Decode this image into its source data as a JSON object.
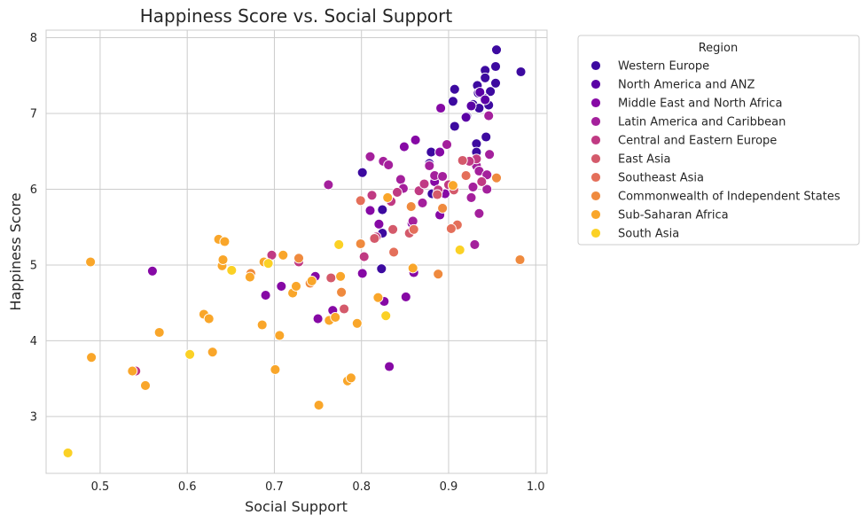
{
  "chart_data": {
    "type": "scatter",
    "title": "Happiness Score vs. Social Support",
    "xlabel": "Social Support",
    "ylabel": "Happiness Score",
    "xlim": [
      0.438,
      1.013
    ],
    "ylim": [
      2.25,
      8.1
    ],
    "xticks": [
      "0.5",
      "0.6",
      "0.7",
      "0.8",
      "0.9",
      "1.0"
    ],
    "yticks": [
      "3",
      "4",
      "5",
      "6",
      "7",
      "8"
    ],
    "grid": true,
    "legend": {
      "title": "Region",
      "position": "outside-right"
    },
    "series": [
      {
        "name": "Western Europe",
        "color": "#3d0aa0",
        "points": [
          [
            0.955,
            7.84
          ],
          [
            0.954,
            7.62
          ],
          [
            0.942,
            7.57
          ],
          [
            0.983,
            7.55
          ],
          [
            0.942,
            7.47
          ],
          [
            0.954,
            7.4
          ],
          [
            0.933,
            7.37
          ],
          [
            0.948,
            7.29
          ],
          [
            0.934,
            7.27
          ],
          [
            0.907,
            7.32
          ],
          [
            0.941,
            7.2
          ],
          [
            0.928,
            7.12
          ],
          [
            0.905,
            7.16
          ],
          [
            0.946,
            7.11
          ],
          [
            0.935,
            7.07
          ],
          [
            0.921,
            6.96
          ],
          [
            0.907,
            6.83
          ],
          [
            0.943,
            6.69
          ],
          [
            0.932,
            6.6
          ],
          [
            0.932,
            6.49
          ],
          [
            0.88,
            6.49
          ],
          [
            0.878,
            6.34
          ],
          [
            0.801,
            6.22
          ],
          [
            0.881,
            5.94
          ],
          [
            0.824,
            5.73
          ],
          [
            0.824,
            5.42
          ],
          [
            0.823,
            4.95
          ]
        ]
      },
      {
        "name": "North America and ANZ",
        "color": "#5a01a5",
        "points": [
          [
            0.936,
            7.28
          ],
          [
            0.942,
            7.18
          ],
          [
            0.926,
            7.1
          ],
          [
            0.92,
            6.95
          ]
        ]
      },
      {
        "name": "Middle East and North Africa",
        "color": "#8609a5",
        "points": [
          [
            0.56,
            4.92
          ],
          [
            0.69,
            4.6
          ],
          [
            0.708,
            4.72
          ],
          [
            0.747,
            4.85
          ],
          [
            0.75,
            4.29
          ],
          [
            0.767,
            4.4
          ],
          [
            0.801,
            4.89
          ],
          [
            0.826,
            4.52
          ],
          [
            0.832,
            3.66
          ],
          [
            0.851,
            4.58
          ],
          [
            0.86,
            4.9
          ],
          [
            0.82,
            5.54
          ],
          [
            0.81,
            5.72
          ],
          [
            0.858,
            5.55
          ],
          [
            0.89,
            5.66
          ],
          [
            0.896,
            5.94
          ],
          [
            0.884,
            6.1
          ],
          [
            0.849,
            6.56
          ],
          [
            0.862,
            6.65
          ],
          [
            0.89,
            6.49
          ],
          [
            0.891,
            7.07
          ]
        ]
      },
      {
        "name": "Latin America and Caribbean",
        "color": "#a4209c",
        "points": [
          [
            0.762,
            6.06
          ],
          [
            0.81,
            6.43
          ],
          [
            0.825,
            6.37
          ],
          [
            0.831,
            6.32
          ],
          [
            0.845,
            6.13
          ],
          [
            0.848,
            6.01
          ],
          [
            0.859,
            5.58
          ],
          [
            0.87,
            5.82
          ],
          [
            0.878,
            6.31
          ],
          [
            0.884,
            6.18
          ],
          [
            0.893,
            6.17
          ],
          [
            0.898,
            6.59
          ],
          [
            0.932,
            6.31
          ],
          [
            0.935,
            6.24
          ],
          [
            0.928,
            6.03
          ],
          [
            0.935,
            5.68
          ],
          [
            0.926,
            5.89
          ],
          [
            0.944,
            6.0
          ],
          [
            0.944,
            6.19
          ],
          [
            0.947,
            6.46
          ],
          [
            0.946,
            6.97
          ],
          [
            0.93,
            5.27
          ]
        ]
      },
      {
        "name": "Central and Eastern Europe",
        "color": "#c03a83",
        "points": [
          [
            0.541,
            3.6
          ],
          [
            0.697,
            5.13
          ],
          [
            0.728,
            5.04
          ],
          [
            0.803,
            5.11
          ],
          [
            0.817,
            5.37
          ],
          [
            0.812,
            5.92
          ],
          [
            0.831,
            5.88
          ],
          [
            0.841,
            5.96
          ],
          [
            0.834,
            5.84
          ],
          [
            0.866,
            5.98
          ],
          [
            0.872,
            6.07
          ],
          [
            0.888,
            5.99
          ],
          [
            0.9,
            6.06
          ],
          [
            0.938,
            6.1
          ],
          [
            0.932,
            6.4
          ],
          [
            0.924,
            6.37
          ]
        ]
      },
      {
        "name": "East Asia",
        "color": "#d45a6b",
        "points": [
          [
            0.765,
            4.83
          ],
          [
            0.78,
            4.42
          ],
          [
            0.815,
            5.35
          ],
          [
            0.836,
            5.47
          ],
          [
            0.855,
            5.42
          ],
          [
            0.887,
            5.93
          ],
          [
            0.906,
            5.99
          ],
          [
            0.916,
            6.38
          ]
        ]
      },
      {
        "name": "Southeast Asia",
        "color": "#e46f5a",
        "points": [
          [
            0.799,
            5.85
          ],
          [
            0.837,
            5.17
          ],
          [
            0.86,
            5.47
          ],
          [
            0.893,
            5.76
          ],
          [
            0.91,
            5.53
          ],
          [
            0.903,
            5.48
          ],
          [
            0.92,
            6.18
          ]
        ]
      },
      {
        "name": "Commonwealth of Independent States",
        "color": "#ef8a3e",
        "points": [
          [
            0.673,
            4.89
          ],
          [
            0.728,
            5.09
          ],
          [
            0.741,
            4.76
          ],
          [
            0.777,
            4.64
          ],
          [
            0.799,
            5.28
          ],
          [
            0.857,
            5.77
          ],
          [
            0.888,
            4.88
          ],
          [
            0.893,
            5.75
          ],
          [
            0.955,
            6.15
          ],
          [
            0.982,
            5.07
          ]
        ]
      },
      {
        "name": "Sub-Saharan Africa",
        "color": "#f9a62a",
        "points": [
          [
            0.489,
            5.04
          ],
          [
            0.49,
            3.78
          ],
          [
            0.537,
            3.6
          ],
          [
            0.552,
            3.41
          ],
          [
            0.568,
            4.11
          ],
          [
            0.619,
            4.35
          ],
          [
            0.625,
            4.29
          ],
          [
            0.629,
            3.85
          ],
          [
            0.636,
            5.34
          ],
          [
            0.643,
            5.31
          ],
          [
            0.64,
            4.99
          ],
          [
            0.641,
            5.07
          ],
          [
            0.672,
            4.84
          ],
          [
            0.686,
            4.21
          ],
          [
            0.688,
            5.04
          ],
          [
            0.701,
            3.62
          ],
          [
            0.706,
            4.07
          ],
          [
            0.71,
            5.13
          ],
          [
            0.721,
            4.63
          ],
          [
            0.725,
            4.72
          ],
          [
            0.743,
            4.79
          ],
          [
            0.751,
            3.15
          ],
          [
            0.763,
            4.27
          ],
          [
            0.77,
            4.31
          ],
          [
            0.776,
            4.85
          ],
          [
            0.784,
            3.47
          ],
          [
            0.788,
            3.51
          ],
          [
            0.795,
            4.23
          ],
          [
            0.819,
            4.57
          ],
          [
            0.83,
            5.89
          ],
          [
            0.859,
            4.96
          ],
          [
            0.905,
            6.05
          ]
        ]
      },
      {
        "name": "South Asia",
        "color": "#fbd125",
        "points": [
          [
            0.463,
            2.52
          ],
          [
            0.603,
            3.82
          ],
          [
            0.651,
            4.93
          ],
          [
            0.693,
            5.02
          ],
          [
            0.774,
            5.27
          ],
          [
            0.828,
            4.33
          ],
          [
            0.913,
            5.2
          ]
        ]
      }
    ]
  }
}
